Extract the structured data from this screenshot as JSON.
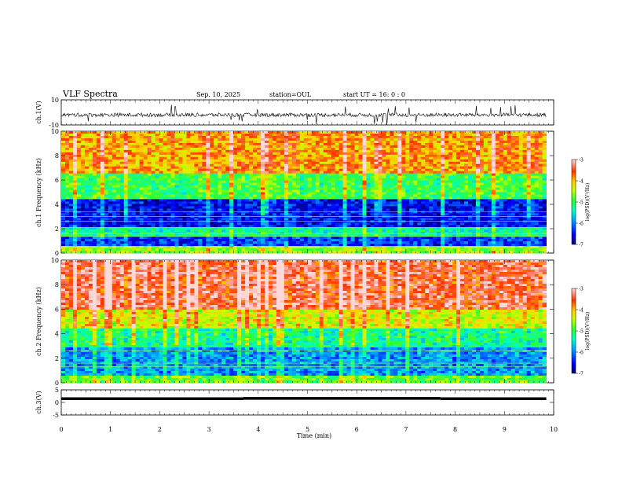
{
  "header": {
    "title": "VLF Spectra",
    "date": "Sep. 10, 2025",
    "station": "station=OUL",
    "start": "start UT =  16: 0 : 0"
  },
  "colorbar": {
    "label": "log(PSD)(V²/Hz)",
    "ticks": [
      "-3",
      "-4",
      "-5",
      "-6",
      "-7"
    ]
  },
  "chart_data": [
    {
      "type": "line",
      "title": "",
      "ylabel": "ch.1(V)",
      "ylim": [
        -10,
        10
      ],
      "yticks": [
        "10",
        "-10"
      ],
      "xlim": [
        0,
        10
      ],
      "description_values": {
        "baseline_v": -2,
        "typical_noise_amplitude_v": 1.5,
        "spike_amplitude_v": 8
      }
    },
    {
      "type": "heatmap",
      "ylabel": "ch.1 Frequency (kHz)",
      "ylim": [
        0,
        10
      ],
      "yticks": [
        "0",
        "2",
        "4",
        "6",
        "8",
        "10"
      ],
      "xlim": [
        0,
        9.85
      ],
      "colorscale": {
        "min": -7,
        "max": -3,
        "unit": "log(PSD)(V²/Hz)"
      },
      "bands_khz": [
        {
          "from": 0,
          "to": 0.6,
          "log_psd": -4.6
        },
        {
          "from": 0.6,
          "to": 1.3,
          "log_psd": -6.3
        },
        {
          "from": 1.3,
          "to": 2.2,
          "log_psd": -5.3
        },
        {
          "from": 2.2,
          "to": 4.5,
          "log_psd": -6.5
        },
        {
          "from": 4.5,
          "to": 6.5,
          "log_psd": -5.0
        },
        {
          "from": 6.5,
          "to": 10,
          "log_psd": -3.9
        }
      ],
      "line_freqs_khz": [
        0.5,
        1.4,
        1.6,
        2.1,
        2.6,
        3.0,
        3.4
      ]
    },
    {
      "type": "heatmap",
      "ylabel": "ch.2 Frequency (kHz)",
      "ylim": [
        0,
        10
      ],
      "yticks": [
        "0",
        "2",
        "4",
        "6",
        "8",
        "10"
      ],
      "xlim": [
        0,
        9.85
      ],
      "colorscale": {
        "min": -7,
        "max": -3,
        "unit": "log(PSD)(V²/Hz)"
      },
      "bands_khz": [
        {
          "from": 0,
          "to": 0.5,
          "log_psd": -4.8
        },
        {
          "from": 0.5,
          "to": 2.8,
          "log_psd": -5.9
        },
        {
          "from": 2.8,
          "to": 4.5,
          "log_psd": -5.2
        },
        {
          "from": 4.5,
          "to": 6.0,
          "log_psd": -4.3
        },
        {
          "from": 6.0,
          "to": 10,
          "log_psd": -3.4
        }
      ],
      "line_freqs_khz": [
        1.3,
        1.6,
        2.6
      ]
    },
    {
      "type": "line",
      "ylabel": "ch.3(V)",
      "ylim": [
        -5,
        5
      ],
      "yticks": [
        "5",
        "0",
        "-5"
      ],
      "xlabel": "Time (min)",
      "xlim": [
        0,
        10
      ],
      "xticks": [
        "0",
        "1",
        "2",
        "3",
        "4",
        "5",
        "6",
        "7",
        "8",
        "9",
        "10"
      ],
      "segments": [
        {
          "x_from": 0,
          "x_to": 3.7,
          "y": 0
        },
        {
          "x_from": 3.7,
          "x_to": 7.7,
          "y": 0.1
        },
        {
          "x_from": 7.7,
          "x_to": 9.85,
          "y": 0
        }
      ]
    }
  ]
}
